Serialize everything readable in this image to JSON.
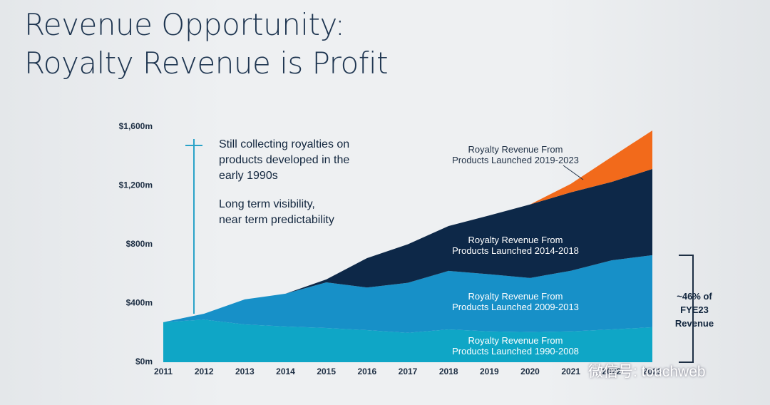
{
  "header": {
    "title_line1": "Revenue Opportunity:",
    "title_line2": "Royalty Revenue is Profit"
  },
  "annotations": {
    "note1": "Still collecting royalties on\nproducts developed in the\nearly 1990s",
    "note2": "Long term visibility,\nnear term predictability",
    "bracket_note": "~46% of\nFYE23\nRevenue"
  },
  "watermark": "微信号: touchweb",
  "chart_data": {
    "type": "stacked_area",
    "x": [
      "2011",
      "2012",
      "2013",
      "2014",
      "2015",
      "2016",
      "2017",
      "2018",
      "2019",
      "2020",
      "2021",
      "2022",
      "2023"
    ],
    "ylim": [
      0,
      1600
    ],
    "yticks": [
      {
        "value": 0,
        "label": "$0m"
      },
      {
        "value": 400,
        "label": "$400m"
      },
      {
        "value": 800,
        "label": "$800m"
      },
      {
        "value": 1200,
        "label": "$1,200m"
      },
      {
        "value": 1600,
        "label": "$1,600m"
      }
    ],
    "series": [
      {
        "name": "Royalty Revenue From\nProducts Launched 1990-2008",
        "color": "#0fa6c6",
        "values": [
          272,
          290,
          257,
          243,
          233,
          218,
          200,
          223,
          210,
          205,
          210,
          223,
          238
        ]
      },
      {
        "name": "Royalty Revenue From\nProducts Launched 2009-2013",
        "color": "#1790c8",
        "values": [
          0,
          40,
          170,
          223,
          310,
          290,
          340,
          398,
          388,
          368,
          412,
          470,
          490
        ]
      },
      {
        "name": "Royalty Revenue From\nProducts Launched 2014-2018",
        "color": "#0d2848",
        "values": [
          0,
          0,
          0,
          0,
          20,
          200,
          262,
          305,
          400,
          500,
          533,
          533,
          586
        ]
      },
      {
        "name": "Royalty Revenue From\nProducts Launched 2019-2023",
        "color": "#f26a1b",
        "values": [
          0,
          0,
          0,
          0,
          0,
          0,
          0,
          0,
          0,
          0,
          58,
          170,
          262
        ]
      }
    ]
  }
}
